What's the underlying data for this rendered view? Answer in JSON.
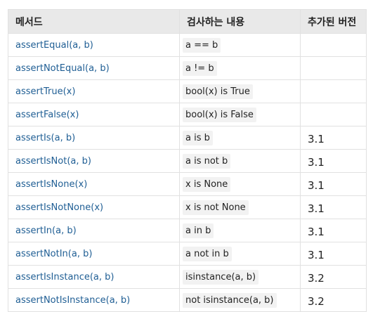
{
  "table": {
    "headers": {
      "method": "메서드",
      "check": "검사하는 내용",
      "version": "추가된 버전"
    },
    "rows": [
      {
        "method": "assertEqual(a, b)",
        "check": "a == b",
        "version": ""
      },
      {
        "method": "assertNotEqual(a, b)",
        "check": "a != b",
        "version": ""
      },
      {
        "method": "assertTrue(x)",
        "check": "bool(x) is True",
        "version": ""
      },
      {
        "method": "assertFalse(x)",
        "check": "bool(x) is False",
        "version": ""
      },
      {
        "method": "assertIs(a, b)",
        "check": "a is b",
        "version": "3.1"
      },
      {
        "method": "assertIsNot(a, b)",
        "check": "a is not b",
        "version": "3.1"
      },
      {
        "method": "assertIsNone(x)",
        "check": "x is None",
        "version": "3.1"
      },
      {
        "method": "assertIsNotNone(x)",
        "check": "x is not None",
        "version": "3.1"
      },
      {
        "method": "assertIn(a, b)",
        "check": "a in b",
        "version": "3.1"
      },
      {
        "method": "assertNotIn(a, b)",
        "check": "a not in b",
        "version": "3.1"
      },
      {
        "method": "assertIsInstance(a, b)",
        "check": "isinstance(a, b)",
        "version": "3.2"
      },
      {
        "method": "assertNotIsInstance(a, b)",
        "check": "not isinstance(a, b)",
        "version": "3.2"
      }
    ]
  }
}
